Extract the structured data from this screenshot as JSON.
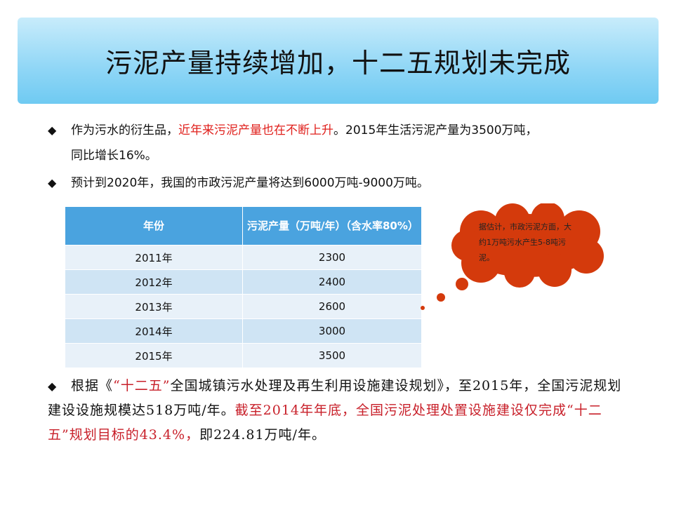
{
  "title": "污泥产量持续增加，十二五规划未完成",
  "bullets": [
    {
      "a": "作为污水的衍生品，",
      "b": "近年来污泥产量也在不断上升",
      "c": "。2015年生活污泥产量为3500万吨，",
      "d": "同比增长16%。"
    },
    {
      "a": "预计到2020年，我国的市政污泥产量将达到6000万吨-9000万吨。"
    }
  ],
  "table": {
    "headers": [
      "年份",
      "污泥产量（万吨/年）（含水率80%）"
    ],
    "rows": [
      [
        "2011年",
        "2300"
      ],
      [
        "2012年",
        "2400"
      ],
      [
        "2013年",
        "2600"
      ],
      [
        "2014年",
        "3000"
      ],
      [
        "2015年",
        "3500"
      ]
    ]
  },
  "callout": "据估计，市政污泥方面，大约1万吨污水产生5-8吨污泥。",
  "bottom": {
    "p1": "根据《",
    "p2": "“十二五”",
    "p3": "全国城镇污水处理及再生利用设施建设规划》，至2015年，全国污泥规划建设设施规模达518万吨/年。",
    "p4": "截至2014年年底，全国污泥处理处置设施建设仅完成“十二五”规划目标的43.4%，",
    "p5": "即224.81万吨/年。"
  },
  "colors": {
    "title_bg": "#8fd6f6",
    "table_header": "#4aa3df",
    "callout": "#d43a0c",
    "highlight": "#e0201c"
  }
}
